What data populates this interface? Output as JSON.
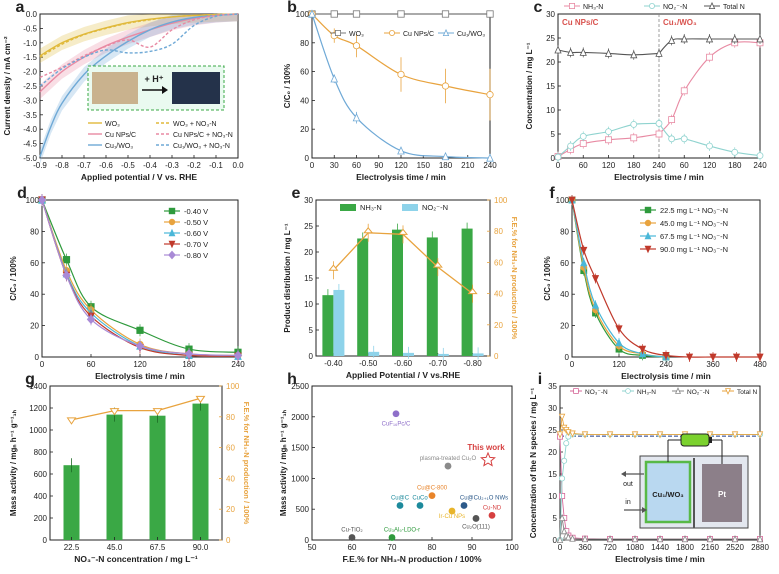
{
  "chart_data": [
    {
      "panel": "a",
      "type": "line",
      "xlabel": "Applied potential / V vs. RHE",
      "ylabel": "Current density / mA cm⁻²",
      "xlim": [
        -0.9,
        0.0
      ],
      "ylim": [
        -5.0,
        0.0
      ],
      "xticks": [
        "-0.9",
        "-0.8",
        "-0.7",
        "-0.6",
        "-0.5",
        "-0.4",
        "-0.3",
        "-0.2",
        "-0.1",
        "0.0"
      ],
      "yticks": [
        "-5.0",
        "-4.5",
        "-4.0",
        "-3.5",
        "-3.0",
        "-2.5",
        "-2.0",
        "-1.5",
        "-1.0",
        "-0.5",
        "0.0"
      ],
      "legend": [
        "WO₃",
        "Cu NPs/C",
        "Cu₁/WO₃",
        "WO₃ + NO₃-N",
        "Cu NPs/C + NO₃-N",
        "Cu₁/WO₃ + NO₃-N"
      ],
      "inset_label": "+ H⁺",
      "series": [
        {
          "color": "#e0b93a",
          "dash": false,
          "x": [
            -0.9,
            -0.8,
            -0.7,
            -0.6,
            -0.5,
            -0.4,
            -0.3,
            -0.2,
            -0.1,
            0.0
          ],
          "y": [
            -1.45,
            -1.0,
            -0.7,
            -0.48,
            -0.3,
            -0.18,
            -0.1,
            -0.05,
            -0.02,
            0.0
          ]
        },
        {
          "color": "#e88aa3",
          "dash": false,
          "x": [
            -0.9,
            -0.8,
            -0.7,
            -0.6,
            -0.5,
            -0.4,
            -0.3,
            -0.2,
            -0.1,
            0.0
          ],
          "y": [
            -2.7,
            -2.0,
            -1.5,
            -1.1,
            -0.8,
            -0.55,
            -0.32,
            -0.15,
            -0.05,
            0.0
          ]
        },
        {
          "color": "#6fa9d6",
          "dash": false,
          "x": [
            -0.9,
            -0.85,
            -0.8,
            -0.7,
            -0.6,
            -0.5,
            -0.4,
            -0.3,
            -0.2,
            -0.1,
            0.0
          ],
          "y": [
            -4.95,
            -3.9,
            -3.1,
            -2.1,
            -1.45,
            -0.95,
            -0.55,
            -0.28,
            -0.12,
            -0.04,
            0.0
          ]
        },
        {
          "color": "#e0b93a",
          "dash": true,
          "x": [
            -0.9,
            -0.8,
            -0.7,
            -0.6,
            -0.5,
            -0.4,
            -0.3,
            -0.2,
            -0.1,
            0.0
          ],
          "y": [
            -1.5,
            -1.05,
            -0.72,
            -0.5,
            -0.32,
            -0.2,
            -0.1,
            -0.05,
            -0.02,
            0.0
          ]
        },
        {
          "color": "#e88aa3",
          "dash": true,
          "x": [
            -0.9,
            -0.8,
            -0.7,
            -0.6,
            -0.5,
            -0.4,
            -0.3,
            -0.2,
            -0.1,
            0.0
          ],
          "y": [
            -2.2,
            -1.85,
            -1.45,
            -1.12,
            -0.9,
            -1.15,
            -0.55,
            -0.2,
            -0.05,
            0.0
          ]
        },
        {
          "color": "#6fa9d6",
          "dash": true,
          "x": [
            -0.9,
            -0.8,
            -0.7,
            -0.6,
            -0.5,
            -0.4,
            -0.3,
            -0.2,
            -0.1,
            0.0
          ],
          "y": [
            -2.5,
            -1.9,
            -1.5,
            -1.25,
            -1.35,
            -1.3,
            -1.05,
            -0.4,
            -0.08,
            0.0
          ]
        }
      ]
    },
    {
      "panel": "b",
      "type": "line",
      "xlabel": "Electrolysis time / min",
      "ylabel": "C/C₀ / 100%",
      "xlim": [
        0,
        240
      ],
      "ylim": [
        0,
        100
      ],
      "xticks": [
        "0",
        "30",
        "60",
        "90",
        "120",
        "150",
        "180",
        "210",
        "240"
      ],
      "yticks": [
        "0",
        "20",
        "40",
        "60",
        "80",
        "100"
      ],
      "series": [
        {
          "name": "WO₃",
          "color": "#777777",
          "marker": "square",
          "x": [
            0,
            30,
            60,
            120,
            180,
            240
          ],
          "y": [
            100,
            100,
            100,
            100,
            100,
            100
          ],
          "err": [
            1,
            1,
            1,
            1,
            1,
            1
          ]
        },
        {
          "name": "Cu NPs/C",
          "color": "#e8a33e",
          "marker": "circle",
          "x": [
            0,
            30,
            60,
            120,
            180,
            240
          ],
          "y": [
            100,
            85,
            78,
            58,
            50,
            44
          ],
          "err": [
            2,
            5,
            8,
            12,
            12,
            18
          ]
        },
        {
          "name": "Cu₁/WO₃",
          "color": "#6fa9d6",
          "marker": "triangle",
          "x": [
            0,
            30,
            60,
            120,
            180,
            240
          ],
          "y": [
            100,
            55,
            28,
            5,
            1,
            0
          ],
          "err": [
            2,
            3,
            4,
            2,
            1,
            1
          ]
        }
      ]
    },
    {
      "panel": "c",
      "type": "line",
      "xlabel": "Electrolysis time / min",
      "ylabel": "Concentration / mg L⁻¹",
      "xlim": [
        0,
        480
      ],
      "ylim": [
        0,
        30
      ],
      "xtick_labels": [
        "0",
        "60",
        "120",
        "180",
        "240",
        "60",
        "120",
        "180",
        "240"
      ],
      "yticks": [
        "0",
        "5",
        "10",
        "15",
        "20",
        "25",
        "30"
      ],
      "segment_labels": [
        "Cu NPs/C",
        "Cu₁/WO₃"
      ],
      "series": [
        {
          "name": "NH₃-N",
          "color": "#e88aa3",
          "marker": "square",
          "x": [
            0,
            30,
            60,
            120,
            180,
            240,
            270,
            300,
            360,
            420,
            480
          ],
          "y": [
            0.3,
            1.8,
            3,
            3.8,
            4.2,
            5,
            8,
            14,
            21,
            24,
            24
          ]
        },
        {
          "name": "NO₂⁻-N",
          "color": "#8fd3cf",
          "marker": "circle",
          "x": [
            0,
            30,
            60,
            120,
            180,
            240,
            270,
            300,
            360,
            420,
            480
          ],
          "y": [
            0.2,
            2.5,
            4.5,
            5.5,
            7,
            7.2,
            4,
            4,
            2.5,
            1.2,
            0.5
          ]
        },
        {
          "name": "Total N",
          "color": "#555555",
          "marker": "triangle",
          "x": [
            0,
            30,
            60,
            120,
            180,
            240,
            270,
            300,
            360,
            420,
            480
          ],
          "y": [
            22.5,
            22,
            22,
            21.8,
            21.5,
            21.8,
            24.5,
            24.8,
            24.8,
            24.8,
            24.8
          ]
        }
      ]
    },
    {
      "panel": "d",
      "type": "line",
      "xlabel": "Electrolysis time / min",
      "ylabel": "C/C₀ / 100%",
      "xlim": [
        0,
        240
      ],
      "ylim": [
        0,
        100
      ],
      "xticks": [
        "0",
        "60",
        "120",
        "180",
        "240"
      ],
      "yticks": [
        "0",
        "20",
        "40",
        "60",
        "80",
        "100"
      ],
      "series": [
        {
          "name": "-0.40 V",
          "color": "#2e9a3c",
          "marker": "square",
          "x": [
            0,
            30,
            60,
            120,
            180,
            240
          ],
          "y": [
            100,
            62,
            32,
            17,
            5,
            3
          ]
        },
        {
          "name": "-0.50 V",
          "color": "#e8a33e",
          "marker": "circle",
          "x": [
            0,
            30,
            60,
            120,
            180,
            240
          ],
          "y": [
            100,
            55,
            30,
            8,
            2,
            1
          ]
        },
        {
          "name": "-0.60 V",
          "color": "#4ab7d8",
          "marker": "triangle",
          "x": [
            0,
            30,
            60,
            120,
            180,
            240
          ],
          "y": [
            100,
            53,
            28,
            7,
            1,
            0.5
          ]
        },
        {
          "name": "-0.70 V",
          "color": "#c0392b",
          "marker": "triangle-down",
          "x": [
            0,
            30,
            60,
            120,
            180,
            240
          ],
          "y": [
            100,
            52,
            26,
            6,
            1,
            0.5
          ]
        },
        {
          "name": "-0.80 V",
          "color": "#a98ad6",
          "marker": "diamond",
          "x": [
            0,
            30,
            60,
            120,
            180,
            240
          ],
          "y": [
            100,
            52,
            24,
            7,
            2,
            1
          ]
        }
      ]
    },
    {
      "panel": "e",
      "type": "bar",
      "xlabel": "Applied Potential / V vs.RHE",
      "ylabel": "Product distribution / mg L⁻¹",
      "y2label": "F.E.% for NH₃-N production / 100%",
      "categories": [
        "-0.40",
        "-0.50",
        "-0.60",
        "-0.70",
        "-0.80"
      ],
      "ylim": [
        0,
        30
      ],
      "y2lim": [
        0,
        100
      ],
      "yticks": [
        "0",
        "5",
        "10",
        "15",
        "20",
        "25",
        "30"
      ],
      "y2ticks": [
        "0",
        "20",
        "40",
        "60",
        "80",
        "100"
      ],
      "series": [
        {
          "name": "NH₃-N",
          "color": "#3aa845",
          "values": [
            11.7,
            22.6,
            24.3,
            22.8,
            24.5
          ]
        },
        {
          "name": "NO₂⁻-N",
          "color": "#8ed3ea",
          "values": [
            12.7,
            0.8,
            0.6,
            0.4,
            0.5
          ]
        }
      ],
      "fe": {
        "color": "#e8a33e",
        "values": [
          55,
          79,
          78,
          57,
          40
        ]
      }
    },
    {
      "panel": "f",
      "type": "line",
      "xlabel": "Electrolysis time / min",
      "ylabel": "C/C₀ / 100%",
      "xlim": [
        0,
        480
      ],
      "ylim": [
        0,
        100
      ],
      "xticks": [
        "0",
        "120",
        "240",
        "360",
        "480"
      ],
      "yticks": [
        "0",
        "20",
        "40",
        "60",
        "80",
        "100"
      ],
      "series": [
        {
          "name": "22.5 mg L⁻¹ NO₃⁻-N",
          "color": "#2e9a3c",
          "marker": "square",
          "x": [
            0,
            30,
            60,
            120,
            180,
            240
          ],
          "y": [
            100,
            55,
            28,
            5,
            1,
            0
          ]
        },
        {
          "name": "45.0 mg L⁻¹ NO₃⁻-N",
          "color": "#e8a33e",
          "marker": "circle",
          "x": [
            0,
            30,
            60,
            120,
            180,
            240
          ],
          "y": [
            100,
            57,
            30,
            7,
            2,
            0
          ]
        },
        {
          "name": "67.5 mg L⁻¹ NO₃⁻-N",
          "color": "#4ab7d8",
          "marker": "triangle",
          "x": [
            0,
            30,
            60,
            120,
            180,
            240
          ],
          "y": [
            100,
            60,
            33,
            9,
            2,
            0
          ]
        },
        {
          "name": "90.0 mg L⁻¹ NO₃⁻-N",
          "color": "#c0392b",
          "marker": "triangle-down",
          "x": [
            0,
            30,
            60,
            120,
            180,
            240,
            300,
            360,
            420,
            480
          ],
          "y": [
            100,
            68,
            50,
            18,
            5,
            1,
            0,
            0,
            0,
            0
          ]
        }
      ]
    },
    {
      "panel": "g",
      "type": "bar",
      "xlabel": "NO₃⁻-N concentration / mg L⁻¹",
      "ylabel": "Mass activity / mgₙ h⁻¹ g⁻¹₁ₕ",
      "y2label": "F.E.% for NH₃-N production / 100%",
      "categories": [
        "22.5",
        "45.0",
        "67.5",
        "90.0"
      ],
      "ylim": [
        0,
        1400
      ],
      "y2lim": [
        0,
        100
      ],
      "yticks": [
        "0",
        "200",
        "400",
        "600",
        "800",
        "1000",
        "1200",
        "1400"
      ],
      "y2ticks": [
        "0",
        "20",
        "40",
        "60",
        "80",
        "100"
      ],
      "series": [
        {
          "name": "Mass activity",
          "color": "#3aa845",
          "values": [
            680,
            1140,
            1130,
            1240
          ]
        }
      ],
      "fe": {
        "color": "#e8a33e",
        "values": [
          78,
          84,
          84,
          92
        ]
      }
    },
    {
      "panel": "h",
      "type": "scatter",
      "xlabel": "F.E.% for NH₃-N production / 100%",
      "ylabel": "Mass activity / mgₙ h⁻¹ g⁻¹₁ₕ",
      "xlim": [
        50,
        100
      ],
      "ylim": [
        0,
        2500
      ],
      "xticks": [
        "50",
        "60",
        "70",
        "80",
        "90",
        "100"
      ],
      "yticks": [
        "0",
        "500",
        "1000",
        "1500",
        "2000",
        "2500"
      ],
      "points": [
        {
          "label": "CuF₁₆Pc/C",
          "x": 71,
          "y": 2050,
          "color": "#8e6fc9"
        },
        {
          "label": "plasma-treated Cu₂O",
          "x": 84,
          "y": 1200,
          "color": "#8a8a8a"
        },
        {
          "label": "This work",
          "x": 94,
          "y": 1300,
          "color": "#d64040",
          "star": true
        },
        {
          "label": "Cu@C-800",
          "x": 80,
          "y": 720,
          "color": "#e8842a"
        },
        {
          "label": "Cu@C",
          "x": 72,
          "y": 560,
          "color": "#1d8a9c"
        },
        {
          "label": "CuCo",
          "x": 77,
          "y": 560,
          "color": "#1d8a9c"
        },
        {
          "label": "Cu@Cu₂₊₁O NWs",
          "x": 88,
          "y": 560,
          "color": "#2d5a8a"
        },
        {
          "label": "Ir-Cu NPs",
          "x": 85,
          "y": 470,
          "color": "#e8b42a"
        },
        {
          "label": "Cu-ND",
          "x": 95,
          "y": 400,
          "color": "#d64040"
        },
        {
          "label": "Cu₂O(111)",
          "x": 91,
          "y": 350,
          "color": "#555555"
        },
        {
          "label": "Cu-TiO₂",
          "x": 60,
          "y": 40,
          "color": "#555555"
        },
        {
          "label": "Cu₃Al₉-LDO-r",
          "x": 70,
          "y": 40,
          "color": "#2e9a3c"
        }
      ],
      "annotation": "This work"
    },
    {
      "panel": "i",
      "type": "line",
      "xlabel": "Electrolysis time / min",
      "ylabel": "Concentration of the N species / mg L⁻¹",
      "xlim": [
        0,
        2880
      ],
      "ylim": [
        0,
        35
      ],
      "xticks": [
        "0",
        "360",
        "720",
        "1080",
        "1440",
        "1800",
        "2160",
        "2520",
        "2880"
      ],
      "yticks": [
        "0",
        "5",
        "10",
        "15",
        "20",
        "25",
        "30",
        "35"
      ],
      "series": [
        {
          "name": "NO₃⁻-N",
          "color": "#d6699a",
          "marker": "square",
          "x": [
            0,
            30,
            60,
            90,
            120,
            180,
            360,
            720,
            1080,
            1440,
            1800,
            2160,
            2520,
            2880
          ],
          "y": [
            23.5,
            10,
            5,
            2,
            1,
            0.5,
            0.3,
            0.2,
            0.2,
            0.2,
            0.2,
            0.2,
            0.2,
            0.2
          ]
        },
        {
          "name": "NH₃-N",
          "color": "#8fd3cf",
          "marker": "circle",
          "x": [
            0,
            30,
            60,
            90,
            120,
            180,
            360,
            720,
            1080,
            1440,
            1800,
            2160,
            2520,
            2880
          ],
          "y": [
            0,
            14,
            18,
            22,
            23.5,
            24,
            24,
            24,
            24,
            24,
            24,
            24,
            24,
            24
          ]
        },
        {
          "name": "NO₂⁻-N",
          "color": "#888888",
          "marker": "triangle",
          "x": [
            0,
            30,
            60,
            90,
            120,
            180,
            360,
            720,
            1080,
            1440,
            1800,
            2160,
            2520,
            2880
          ],
          "y": [
            0,
            5,
            2,
            1,
            0.6,
            0.3,
            0.2,
            0.2,
            0.2,
            0.2,
            0.2,
            0.2,
            0.2,
            0.2
          ]
        },
        {
          "name": "Total N",
          "color": "#e8a33e",
          "marker": "triangle-down",
          "x": [
            0,
            30,
            60,
            90,
            120,
            180,
            360,
            720,
            1080,
            1440,
            1800,
            2160,
            2520,
            2880
          ],
          "y": [
            24,
            28,
            25.5,
            25,
            24.5,
            24.2,
            24,
            24,
            24,
            24,
            24,
            24,
            24,
            24
          ]
        }
      ],
      "reference_line": 23.6,
      "inset": {
        "cathode": "Cu₁/WO₃",
        "anode": "Pt",
        "out": "out",
        "in": "in"
      }
    }
  ]
}
